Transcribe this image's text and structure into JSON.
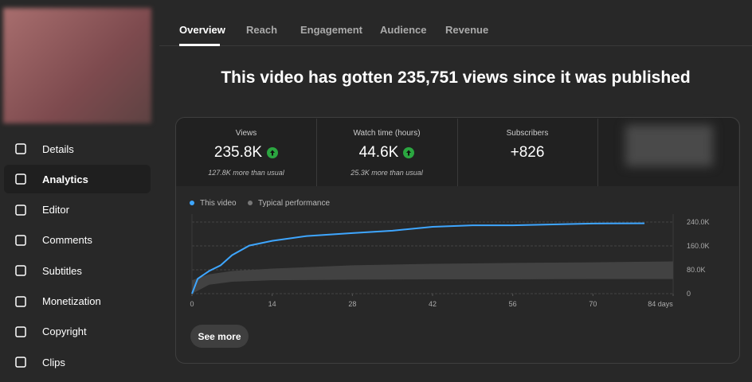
{
  "sidebar": {
    "items": [
      "Details",
      "Analytics",
      "Editor",
      "Comments",
      "Subtitles",
      "Monetization",
      "Copyright",
      "Clips"
    ]
  },
  "tabs": [
    "Overview",
    "Reach",
    "Engagement",
    "Audience",
    "Revenue"
  ],
  "headline": "This video has gotten 235,751 views since it was published",
  "metrics": [
    {
      "label": "Views",
      "value": "235.8K",
      "note": "127.8K more than usual"
    },
    {
      "label": "Watch time (hours)",
      "value": "44.6K",
      "note": "25.3K more than usual"
    },
    {
      "label": "Subscribers",
      "value": "+826"
    }
  ],
  "button": "See more",
  "chart_data": {
    "type": "line",
    "series": [
      {
        "name": "This video",
        "color": "#3ea6ff",
        "x": [
          0,
          1,
          3,
          5,
          7,
          10,
          14,
          20,
          28,
          35,
          42,
          49,
          56,
          63,
          70,
          79
        ],
        "values": [
          0,
          50000,
          76000,
          95000,
          129000,
          161000,
          177000,
          193000,
          203000,
          211000,
          224000,
          229000,
          229000,
          232000,
          235000,
          235800
        ]
      },
      {
        "name": "Typical performance",
        "color": "#5a5a5a",
        "x": [
          0,
          3,
          7,
          14,
          28,
          42,
          56,
          70,
          84
        ],
        "values": [
          45000,
          65000,
          76000,
          84000,
          95000,
          100000,
          103000,
          105000,
          108000
        ],
        "lower": [
          0,
          30000,
          40000,
          45000,
          47000,
          48000,
          48000,
          49000,
          49000
        ]
      }
    ],
    "xlim": [
      0,
      84
    ],
    "xticks": [
      0,
      14,
      28,
      42,
      56,
      70,
      {
        "value": 84,
        "label": "84 days"
      }
    ],
    "ylim": [
      0,
      240000
    ],
    "yticks": [
      {
        "value": 0,
        "label": "0"
      },
      {
        "value": 80000,
        "label": "80.0K"
      },
      {
        "value": 160000,
        "label": "160.0K"
      },
      {
        "value": 240000,
        "label": "240.0K"
      }
    ],
    "grid": true
  }
}
